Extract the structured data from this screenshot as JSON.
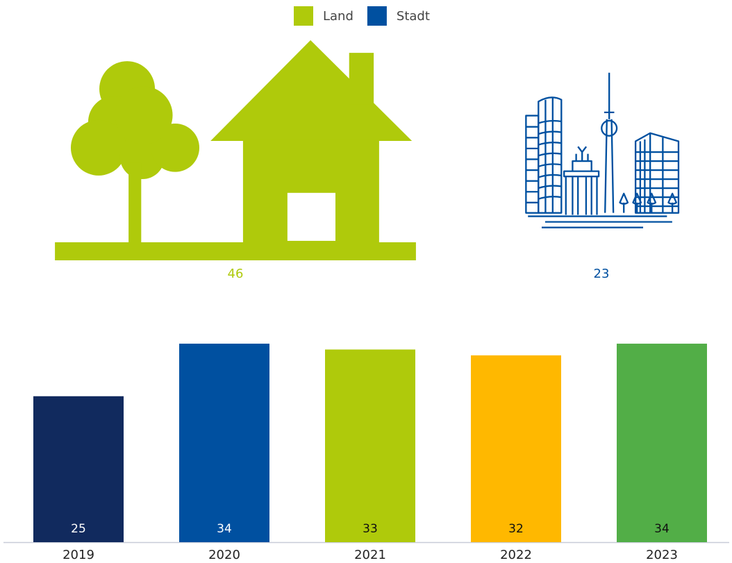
{
  "chart_data": [
    {
      "type": "pictogram",
      "categories": [
        "Land",
        "Stadt"
      ],
      "values": [
        46,
        23
      ],
      "colors": [
        "#afca0b",
        "#0050a0"
      ],
      "legend": "top"
    },
    {
      "type": "bar",
      "categories": [
        "2019",
        "2020",
        "2021",
        "2022",
        "2023"
      ],
      "values": [
        25,
        34,
        33,
        32,
        34
      ],
      "colors": [
        "#112a5e",
        "#0050a0",
        "#afca0b",
        "#ffb800",
        "#52ae47"
      ]
    }
  ]
}
